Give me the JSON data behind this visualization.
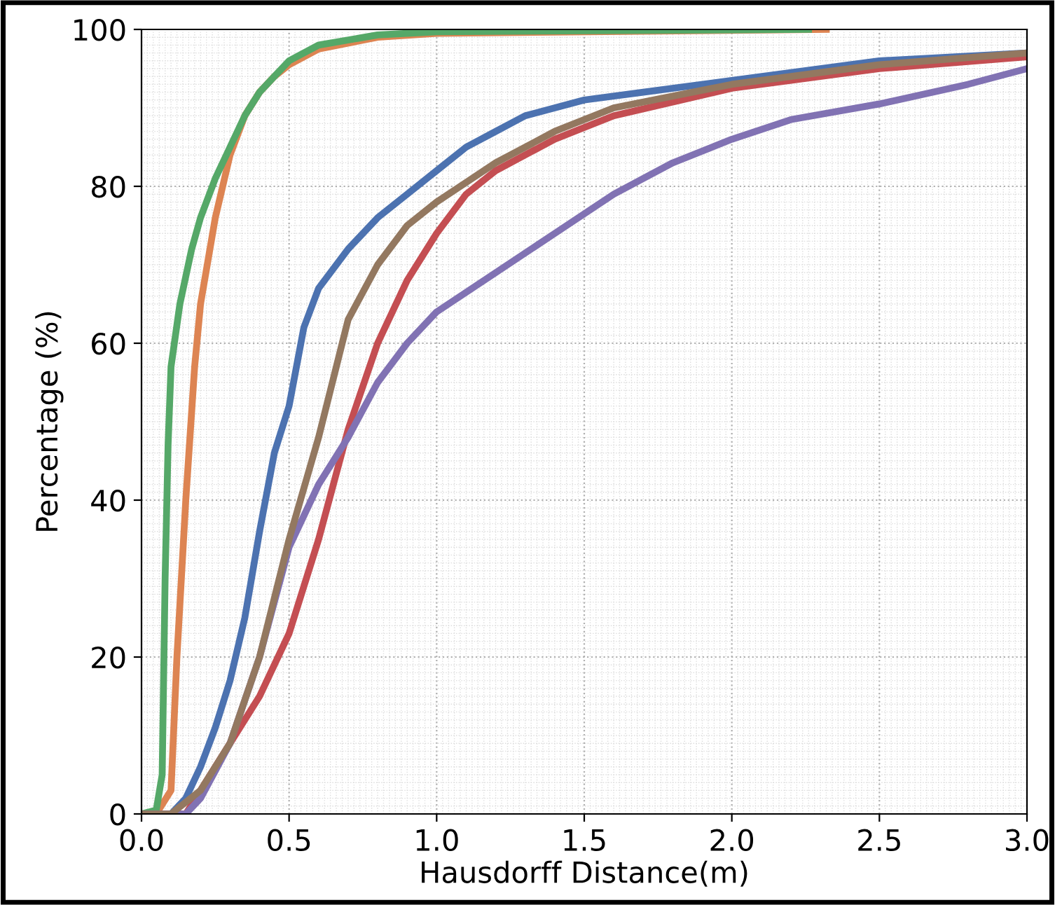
{
  "chart_data": {
    "type": "line",
    "xlabel": "Hausdorff Distance(m)",
    "ylabel": "Percentage (%)",
    "xlim": [
      0.0,
      3.0
    ],
    "ylim": [
      0,
      100
    ],
    "xticks": [
      {
        "value": 0,
        "label": "0.0"
      },
      {
        "value": 0.5,
        "label": "0.5"
      },
      {
        "value": 1,
        "label": "1.0"
      },
      {
        "value": 1.5,
        "label": "1.5"
      },
      {
        "value": 2,
        "label": "2.0"
      },
      {
        "value": 2.5,
        "label": "2.5"
      },
      {
        "value": 3,
        "label": "3.0"
      }
    ],
    "yticks": [
      0,
      20,
      40,
      60,
      80,
      100
    ],
    "grid": true,
    "legend": false,
    "marker": "none",
    "line_style": "solid",
    "series": [
      {
        "color": "#4c72b0",
        "x": [
          0.0,
          0.1,
          0.15,
          0.2,
          0.25,
          0.3,
          0.35,
          0.4,
          0.45,
          0.5,
          0.55,
          0.6,
          0.7,
          0.8,
          0.9,
          1.0,
          1.1,
          1.2,
          1.3,
          1.5,
          1.7,
          2.0,
          2.5,
          3.0
        ],
        "values": [
          0,
          0,
          2,
          6,
          11,
          17,
          25,
          36,
          46,
          52,
          62,
          67,
          72,
          76,
          79,
          82,
          85,
          87,
          89,
          91,
          92,
          93.5,
          96,
          97
        ]
      },
      {
        "color": "#dd8452",
        "x": [
          0.0,
          0.05,
          0.1,
          0.12,
          0.15,
          0.18,
          0.2,
          0.25,
          0.3,
          0.35,
          0.4,
          0.45,
          0.5,
          0.6,
          0.8,
          1.0,
          2.32
        ],
        "values": [
          0,
          0,
          3,
          20,
          40,
          57,
          65,
          76,
          84,
          89,
          92,
          94,
          95.5,
          97.5,
          99,
          99.5,
          100
        ]
      },
      {
        "color": "#55a868",
        "x": [
          0.0,
          0.05,
          0.07,
          0.08,
          0.09,
          0.1,
          0.13,
          0.17,
          0.2,
          0.25,
          0.3,
          0.35,
          0.4,
          0.45,
          0.5,
          0.6,
          0.8,
          1.0,
          2.26
        ],
        "values": [
          0,
          0.5,
          5,
          30,
          47,
          57,
          65,
          72,
          76,
          81,
          85,
          89,
          92,
          94,
          96,
          98,
          99.3,
          99.7,
          100
        ]
      },
      {
        "color": "#c44e52",
        "x": [
          0.0,
          0.15,
          0.2,
          0.3,
          0.4,
          0.5,
          0.6,
          0.7,
          0.8,
          0.9,
          1.0,
          1.1,
          1.2,
          1.4,
          1.6,
          2.0,
          2.5,
          3.0
        ],
        "values": [
          0,
          0,
          3,
          9,
          15,
          23,
          35,
          49,
          60,
          68,
          74,
          79,
          82,
          86,
          89,
          92.5,
          95,
          96.5
        ]
      },
      {
        "color": "#8172b3",
        "x": [
          0.0,
          0.15,
          0.2,
          0.3,
          0.4,
          0.5,
          0.6,
          0.7,
          0.8,
          0.9,
          1.0,
          1.2,
          1.4,
          1.6,
          1.8,
          2.0,
          2.2,
          2.5,
          2.8,
          3.0
        ],
        "values": [
          0,
          0,
          2,
          9,
          20,
          34,
          42,
          48,
          55,
          60,
          64,
          69,
          74,
          79,
          83,
          86,
          88.5,
          90.5,
          93,
          95
        ]
      },
      {
        "color": "#937860",
        "x": [
          0.0,
          0.1,
          0.2,
          0.3,
          0.4,
          0.5,
          0.6,
          0.7,
          0.8,
          0.9,
          1.0,
          1.2,
          1.4,
          1.6,
          2.0,
          2.5,
          3.0
        ],
        "values": [
          0,
          0,
          3,
          9,
          20,
          35,
          48,
          63,
          70,
          75,
          78,
          83,
          87,
          90,
          93,
          95.5,
          97
        ]
      }
    ]
  }
}
